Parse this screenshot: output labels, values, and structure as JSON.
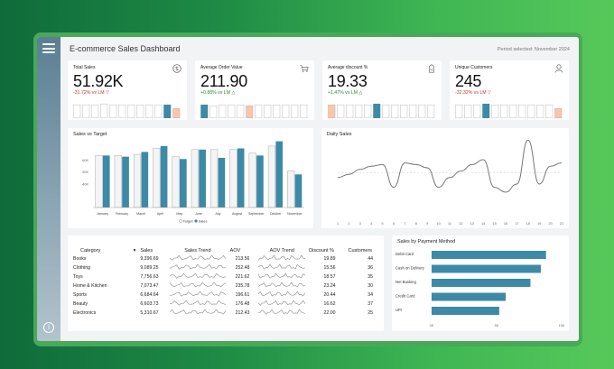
{
  "header": {
    "title": "E-commerce Sales Dashboard",
    "period": "Period selected: November 2024"
  },
  "colors": {
    "accent": "#3d8aa7",
    "highlight": "#f4c7b3",
    "neutral": "#e6e6e6",
    "positive": "#2e8b3a",
    "negative": "#c0392b"
  },
  "kpis": [
    {
      "label": "Total Sales",
      "value": "51.92K",
      "change": "-31.72% vs LM",
      "trend": "down",
      "icon": "dollar-icon",
      "mini": [
        0.75,
        0.75,
        0.75,
        0.8,
        0.75,
        0.75,
        0.75,
        0.75,
        0.75,
        0.75,
        0.75,
        0.55
      ]
    },
    {
      "label": "Average Order Value",
      "value": "211.90",
      "change": "+0.88% vs LM",
      "trend": "up",
      "icon": "cart-icon",
      "mini": [
        0.75,
        0.7,
        0.75,
        0.75,
        0.75,
        0.7,
        0.75,
        0.75,
        0.75,
        0.75,
        0.75,
        0.75
      ]
    },
    {
      "label": "Average discount %",
      "value": "19.33",
      "change": "+1.47% vs LM",
      "trend": "up",
      "icon": "tag-icon",
      "mini": [
        0.75,
        0.75,
        0.75,
        0.75,
        0.75,
        0.8,
        0.75,
        0.75,
        0.75,
        0.75,
        0.75,
        0.75
      ]
    },
    {
      "label": "Unique Customers",
      "value": "245",
      "change": "-32.32% vs LM",
      "trend": "down",
      "icon": "user-icon",
      "mini": [
        0.75,
        0.75,
        0.75,
        0.8,
        0.75,
        0.75,
        0.75,
        0.75,
        0.75,
        0.75,
        0.75,
        0.55
      ]
    }
  ],
  "chart_data": [
    {
      "type": "bar",
      "title": "Sales vs Target",
      "categories": [
        "January",
        "February",
        "March",
        "April",
        "May",
        "June",
        "July",
        "August",
        "September",
        "October",
        "November"
      ],
      "series": [
        {
          "name": "Target",
          "values": [
            64,
            64,
            65,
            70,
            63,
            69,
            69,
            69,
            66,
            72,
            51
          ]
        },
        {
          "name": "Sales",
          "values": [
            64,
            63,
            67,
            72,
            61,
            69,
            62,
            70,
            64,
            76,
            48
          ]
        }
      ],
      "yticks": [
        "40K",
        "50K",
        "60K"
      ],
      "ylim": [
        20,
        78
      ],
      "legend": "bottom"
    },
    {
      "type": "line",
      "title": "Daily Sales",
      "x": [
        1,
        2,
        3,
        4,
        5,
        6,
        7,
        8,
        9,
        10,
        11,
        12,
        13,
        14,
        15,
        16,
        17,
        18,
        19,
        20,
        21
      ],
      "values": [
        2.4,
        2.6,
        2.9,
        3.1,
        3.2,
        1.8,
        3.3,
        3.2,
        3.0,
        1.8,
        2.4,
        2.8,
        3.2,
        3.5,
        1.8,
        1.5,
        2.0,
        4.7,
        2.0,
        3.1,
        3.3
      ],
      "ylim": [
        0,
        5
      ],
      "legend": "none"
    },
    {
      "type": "bar",
      "title": "Sales by Payment Method",
      "orientation": "horizontal",
      "categories": [
        "Debit Card",
        "Cash on Delivery",
        "Net Banking",
        "Credit Card",
        "UPI"
      ],
      "values": [
        88,
        84,
        76,
        57,
        52
      ],
      "xticks": [
        "0K",
        "5K",
        "10K"
      ],
      "xlim": [
        0,
        100
      ],
      "legend": "none"
    }
  ],
  "table": {
    "headers": [
      "Category",
      "Sales",
      "Sales Trend",
      "AOV",
      "AOV Trend",
      "Discount %",
      "Customers"
    ],
    "rows": [
      {
        "category": "Books",
        "sales": "9,396.69",
        "aov": "213.56",
        "discount": "19.89",
        "customers": "44"
      },
      {
        "category": "Clothing",
        "sales": "9,089.25",
        "aov": "252.48",
        "discount": "15.56",
        "customers": "36"
      },
      {
        "category": "Toys",
        "sales": "7,756.63",
        "aov": "221.62",
        "discount": "18.57",
        "customers": "35"
      },
      {
        "category": "Home & Kitchen",
        "sales": "7,073.47",
        "aov": "235.78",
        "discount": "23.24",
        "customers": "30"
      },
      {
        "category": "Sports",
        "sales": "6,684.64",
        "aov": "196.61",
        "discount": "20.44",
        "customers": "34"
      },
      {
        "category": "Beauty",
        "sales": "6,603.73",
        "aov": "176.48",
        "discount": "16.62",
        "customers": "37"
      },
      {
        "category": "Electronics",
        "sales": "5,310.67",
        "aov": "212.43",
        "discount": "22.00",
        "customers": "25"
      }
    ]
  }
}
